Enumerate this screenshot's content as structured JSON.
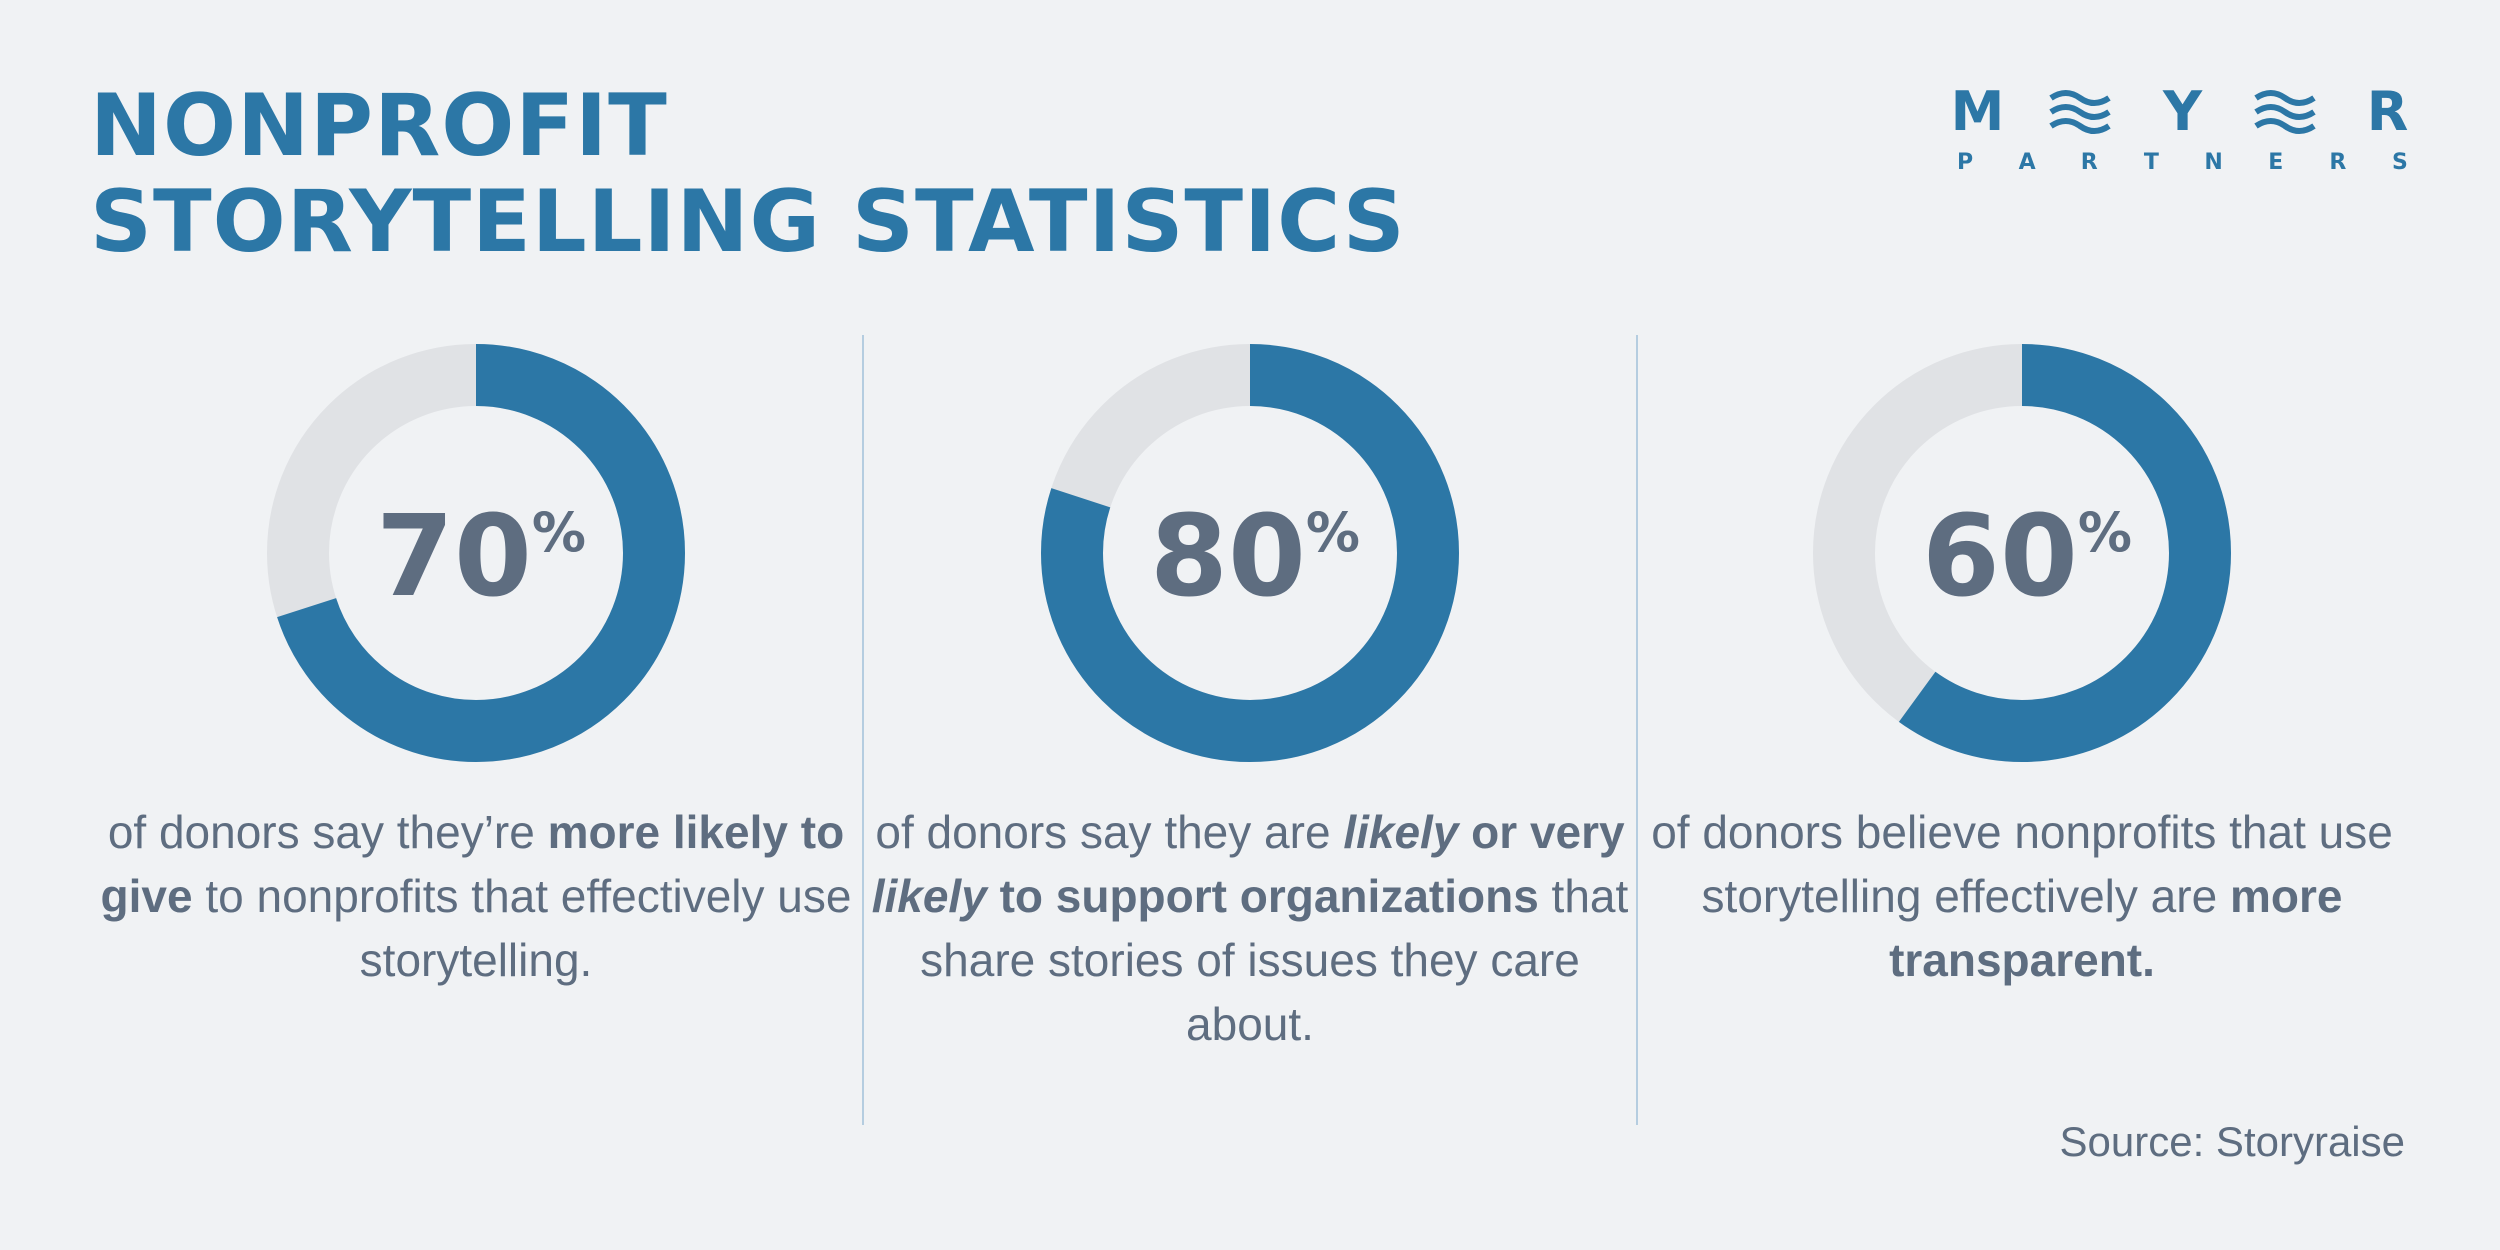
{
  "title": {
    "line1": "NONPROFIT",
    "line2": "STORYTELLING STATISTICS"
  },
  "logo": {
    "letters": [
      "M",
      "Y",
      "R"
    ],
    "sub": [
      "P",
      "A",
      "R",
      "T",
      "N",
      "E",
      "R",
      "S"
    ]
  },
  "colors": {
    "accent": "#2c77a6",
    "track": "#e0e2e5",
    "text": "#5e6d80",
    "background": "#f0f2f4"
  },
  "chart_data": [
    {
      "type": "pie",
      "values": [
        70,
        30
      ],
      "value_label": "70",
      "percent_sign": "%",
      "description": {
        "parts": [
          {
            "text": "of donors say they’re ",
            "bold": false,
            "italic": false
          },
          {
            "text": "more likely to give",
            "bold": true,
            "italic": false
          },
          {
            "text": " to nonprofits that effectively use storytelling.",
            "bold": false,
            "italic": false
          }
        ]
      }
    },
    {
      "type": "pie",
      "values": [
        80,
        20
      ],
      "value_label": "80",
      "percent_sign": "%",
      "description": {
        "parts": [
          {
            "text": "of donors say they are ",
            "bold": false,
            "italic": false
          },
          {
            "text": "likely",
            "bold": true,
            "italic": true
          },
          {
            "text": " or very ",
            "bold": true,
            "italic": false
          },
          {
            "text": "likely",
            "bold": true,
            "italic": true
          },
          {
            "text": " to support organizations",
            "bold": true,
            "italic": false
          },
          {
            "text": " that share stories of issues they care about.",
            "bold": false,
            "italic": false
          }
        ]
      }
    },
    {
      "type": "pie",
      "values": [
        60,
        40
      ],
      "value_label": "60",
      "percent_sign": "%",
      "description": {
        "parts": [
          {
            "text": "of donors believe nonprofits that use storytelling effectively are ",
            "bold": false,
            "italic": false
          },
          {
            "text": "more transparent.",
            "bold": true,
            "italic": false
          }
        ]
      }
    }
  ],
  "source": "Source: Storyraise"
}
